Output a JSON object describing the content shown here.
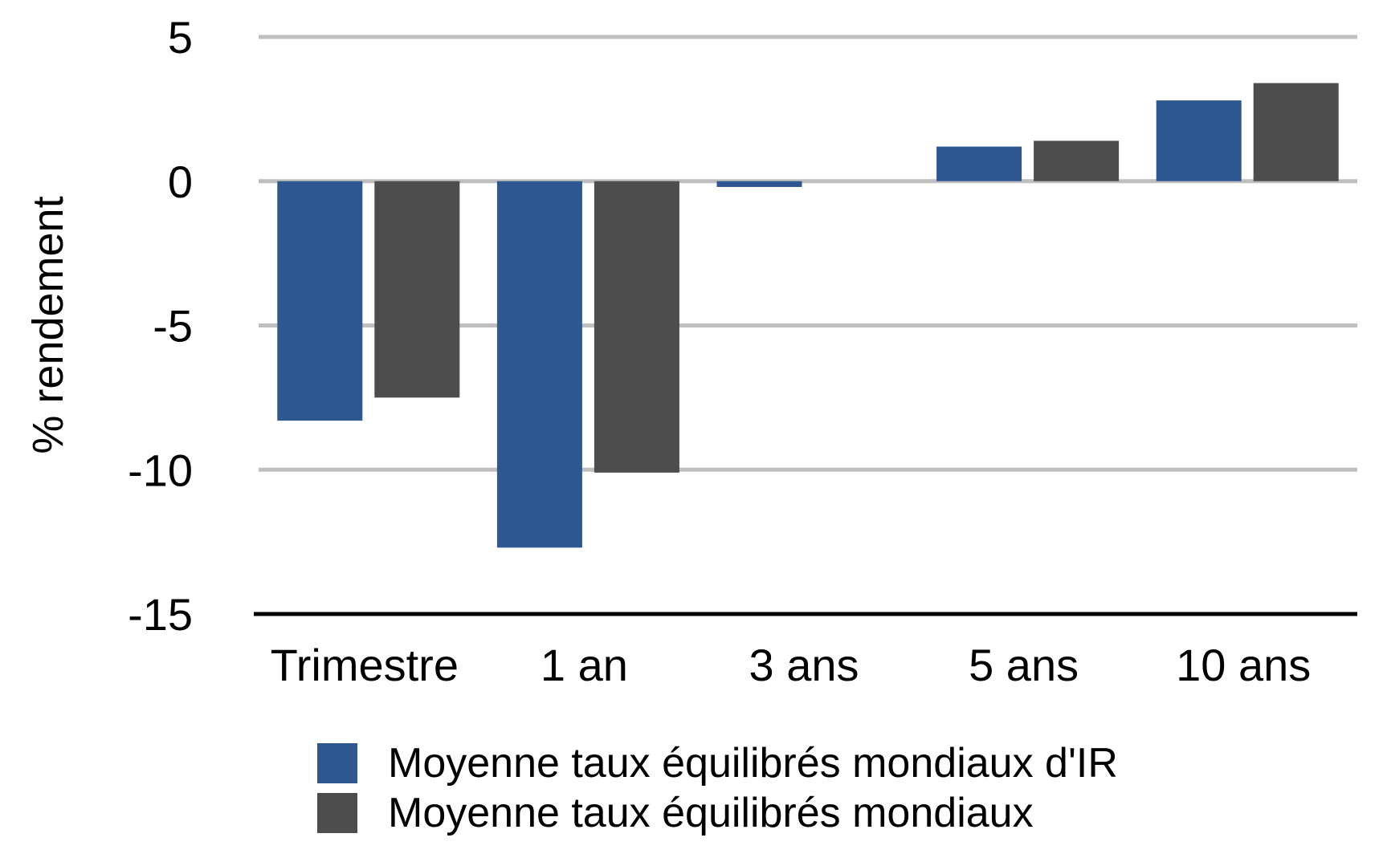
{
  "chart_data": {
    "type": "bar",
    "categories": [
      "Trimestre",
      "1 an",
      "3 ans",
      "5 ans",
      "10 ans"
    ],
    "series": [
      {
        "name": "Moyenne taux équilibrés mondiaux d'IR",
        "color": "#2e5790",
        "values": [
          -8.3,
          -12.7,
          -0.2,
          1.2,
          2.8
        ]
      },
      {
        "name": "Moyenne taux équilibrés mondiaux",
        "color": "#4d4d4d",
        "values": [
          -7.5,
          -10.1,
          0.0,
          1.4,
          3.4
        ]
      }
    ],
    "ylabel": "% rendement",
    "ylim": [
      -15,
      5
    ],
    "yticks": [
      5,
      0,
      -5,
      -10,
      -15
    ],
    "grid": true,
    "gridColor": "#bfbfbf",
    "legendPlacement": "bottom"
  }
}
